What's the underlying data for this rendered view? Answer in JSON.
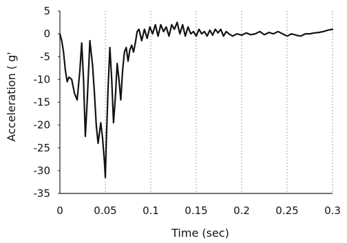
{
  "chart_data": {
    "type": "line",
    "title": "",
    "xlabel": "Time (sec)",
    "ylabel": "Acceleration ( g'",
    "xlim": [
      0,
      0.3
    ],
    "ylim": [
      -35,
      5
    ],
    "x_ticks": [
      0,
      0.05,
      0.1,
      0.15,
      0.2,
      0.25,
      0.3
    ],
    "x_tick_labels": [
      "0",
      "0.05",
      "0.1",
      "0.15",
      "0.2",
      "0.25",
      "0.3"
    ],
    "y_ticks": [
      5,
      0,
      -5,
      -10,
      -15,
      -20,
      -25,
      -30,
      -35
    ],
    "y_tick_labels": [
      "5",
      "0",
      "-5",
      "-10",
      "-15",
      "-20",
      "-25",
      "-30",
      "-35"
    ],
    "grid": {
      "vertical": true,
      "horizontal": false,
      "style": "dotted"
    },
    "series": [
      {
        "color": "#111111",
        "x": [
          0,
          0.002,
          0.004,
          0.006,
          0.008,
          0.01,
          0.013,
          0.016,
          0.019,
          0.022,
          0.024,
          0.026,
          0.028,
          0.03,
          0.033,
          0.036,
          0.038,
          0.04,
          0.042,
          0.045,
          0.047,
          0.049,
          0.05,
          0.051,
          0.053,
          0.055,
          0.057,
          0.059,
          0.061,
          0.063,
          0.065,
          0.067,
          0.069,
          0.071,
          0.073,
          0.075,
          0.077,
          0.079,
          0.081,
          0.083,
          0.085,
          0.087,
          0.09,
          0.093,
          0.096,
          0.099,
          0.102,
          0.105,
          0.108,
          0.111,
          0.114,
          0.117,
          0.12,
          0.123,
          0.126,
          0.129,
          0.132,
          0.135,
          0.138,
          0.141,
          0.144,
          0.147,
          0.15,
          0.153,
          0.156,
          0.159,
          0.162,
          0.165,
          0.168,
          0.171,
          0.174,
          0.177,
          0.18,
          0.183,
          0.186,
          0.19,
          0.195,
          0.2,
          0.205,
          0.21,
          0.215,
          0.22,
          0.225,
          0.23,
          0.235,
          0.24,
          0.245,
          0.25,
          0.255,
          0.26,
          0.265,
          0.27,
          0.275,
          0.28,
          0.285,
          0.29,
          0.295,
          0.3
        ],
        "y": [
          0,
          -1.5,
          -4,
          -8,
          -10.5,
          -9.5,
          -10,
          -13,
          -14.5,
          -8,
          -2,
          -10,
          -22.5,
          -15,
          -1.5,
          -7,
          -13,
          -20,
          -24,
          -19.5,
          -23,
          -28,
          -31.5,
          -24,
          -12,
          -3,
          -10,
          -19.5,
          -14,
          -6.5,
          -10,
          -14.5,
          -8,
          -4,
          -3,
          -6,
          -3.5,
          -2.5,
          -4,
          -2,
          0.5,
          1,
          -1.5,
          1,
          -1,
          1.5,
          0,
          2,
          -0.5,
          2,
          0.5,
          1.5,
          -0.5,
          2,
          1,
          2.5,
          0,
          2,
          -0.5,
          1.5,
          0,
          0.5,
          -0.5,
          1,
          0,
          0.5,
          -0.5,
          0.8,
          -0.3,
          1,
          0.2,
          1,
          -0.5,
          0.5,
          0,
          -0.5,
          0,
          -0.3,
          0.2,
          -0.2,
          0,
          0.5,
          -0.2,
          0.3,
          0,
          0.5,
          0,
          -0.5,
          0,
          -0.3,
          -0.5,
          0,
          0,
          0.2,
          0.3,
          0.5,
          0.8,
          1
        ]
      }
    ]
  }
}
